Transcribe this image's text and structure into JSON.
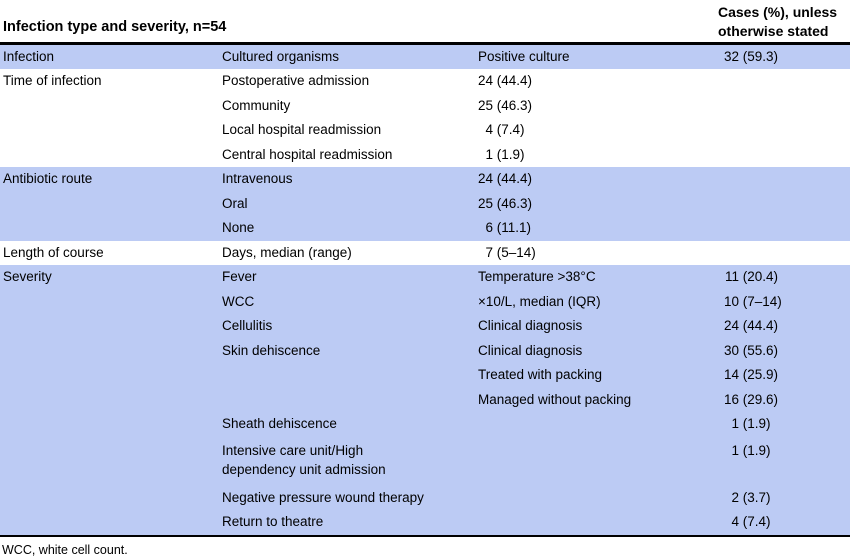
{
  "table": {
    "title": "Infection type and severity, n=54",
    "cases_header": "Cases (%), unless\notherwise stated",
    "footnote": "WCC, white cell count.",
    "colors": {
      "band_blue": "#bccbf4",
      "band_white": "#ffffff",
      "rule_black": "#000000",
      "text": "#000000"
    },
    "rows": [
      {
        "band": "blue",
        "tall": false,
        "c1": "Infection",
        "c2": "Cultured organisms",
        "c3": "Positive culture",
        "c4": "32 (59.3)"
      },
      {
        "band": "white",
        "tall": false,
        "c1": "Time of infection",
        "c2": "Postoperative admission",
        "c3": "24 (44.4)",
        "c4": ""
      },
      {
        "band": "white",
        "tall": false,
        "c1": "",
        "c2": "Community",
        "c3": "25 (46.3)",
        "c4": ""
      },
      {
        "band": "white",
        "tall": false,
        "c1": "",
        "c2": "Local hospital readmission",
        "c3": "4 (7.4)",
        "c4": ""
      },
      {
        "band": "white",
        "tall": false,
        "c1": "",
        "c2": "Central hospital readmission",
        "c3": "1 (1.9)",
        "c4": ""
      },
      {
        "band": "blue",
        "tall": false,
        "c1": "Antibiotic route",
        "c2": "Intravenous",
        "c3": "24 (44.4)",
        "c4": ""
      },
      {
        "band": "blue",
        "tall": false,
        "c1": "",
        "c2": "Oral",
        "c3": "25 (46.3)",
        "c4": ""
      },
      {
        "band": "blue",
        "tall": false,
        "c1": "",
        "c2": "None",
        "c3": "6 (11.1)",
        "c4": ""
      },
      {
        "band": "white",
        "tall": false,
        "c1": "Length of course",
        "c2": "Days, median (range)",
        "c3": "7 (5–14)",
        "c4": ""
      },
      {
        "band": "blue",
        "tall": false,
        "c1": "Severity",
        "c2": "Fever",
        "c3": "Temperature >38°C",
        "c4": "11 (20.4)"
      },
      {
        "band": "blue",
        "tall": false,
        "c1": "",
        "c2": "WCC",
        "c3": "×10/L, median (IQR)",
        "c4": "10 (7–14)"
      },
      {
        "band": "blue",
        "tall": false,
        "c1": "",
        "c2": "Cellulitis",
        "c3": "Clinical diagnosis",
        "c4": "24 (44.4)"
      },
      {
        "band": "blue",
        "tall": false,
        "c1": "",
        "c2": "Skin dehiscence",
        "c3": "Clinical diagnosis",
        "c4": "30 (55.6)"
      },
      {
        "band": "blue",
        "tall": false,
        "c1": "",
        "c2": "",
        "c3": "Treated with packing",
        "c4": "14 (25.9)"
      },
      {
        "band": "blue",
        "tall": false,
        "c1": "",
        "c2": "",
        "c3": "Managed without packing",
        "c4": "16 (29.6)"
      },
      {
        "band": "blue",
        "tall": false,
        "c1": "",
        "c2": "Sheath dehiscence",
        "c3": "",
        "c4": "1 (1.9)"
      },
      {
        "band": "blue",
        "tall": true,
        "c1": "",
        "c2": "Intensive care unit/High dependency unit admission",
        "c3": "",
        "c4": "1 (1.9)"
      },
      {
        "band": "blue",
        "tall": false,
        "c1": "",
        "c2": "Negative pressure wound therapy",
        "c3": "",
        "c4": "2 (3.7)"
      },
      {
        "band": "blue",
        "tall": false,
        "c1": "",
        "c2": "Return to theatre",
        "c3": "",
        "c4": "4 (7.4)"
      }
    ]
  }
}
